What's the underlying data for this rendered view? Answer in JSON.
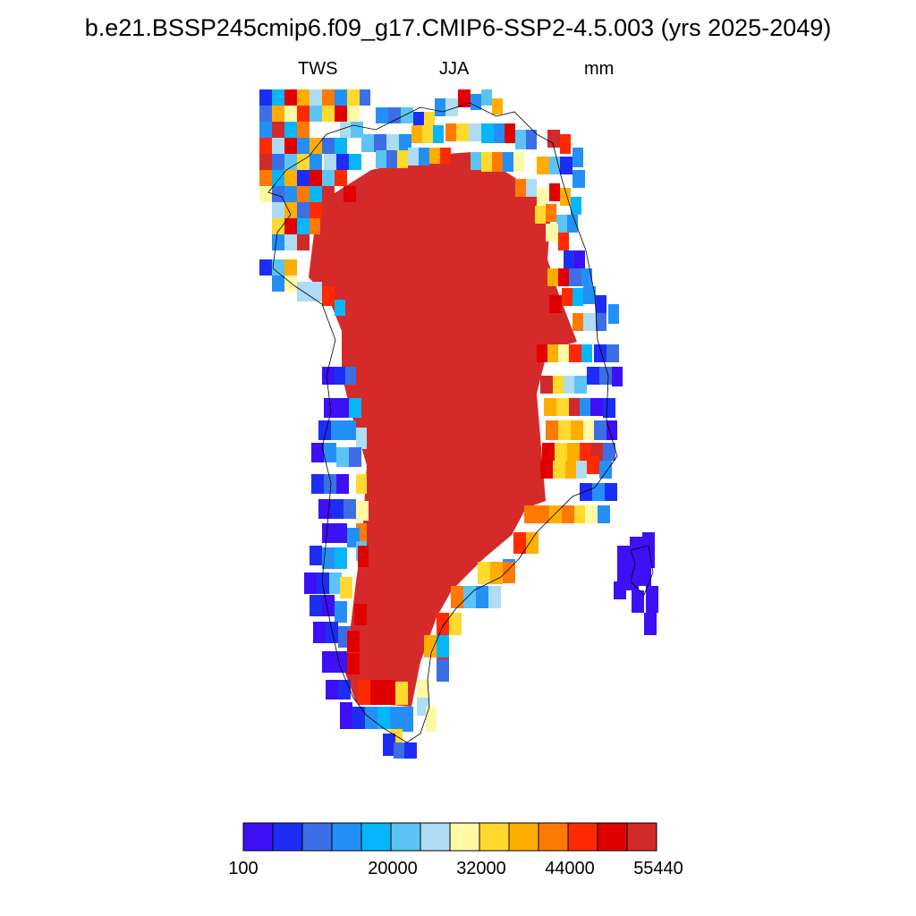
{
  "title": "b.e21.BSSP245cmip6.f09_g17.CMIP6-SSP2-4.5.003 (yrs 2025-2049)",
  "subtitle": {
    "left": "TWS",
    "center": "JJA",
    "right": "mm"
  },
  "colorbar": {
    "colors": [
      "#3d10f5",
      "#1c2ef5",
      "#3c6fe6",
      "#2490f7",
      "#06b6fb",
      "#5cc4f5",
      "#aedcf3",
      "#fff8a5",
      "#ffd92d",
      "#ffae00",
      "#ff7a00",
      "#ff2a00",
      "#e00000",
      "#d12a2a"
    ],
    "labels": [
      "100",
      "20000",
      "32000",
      "44000",
      "55440"
    ]
  }
}
